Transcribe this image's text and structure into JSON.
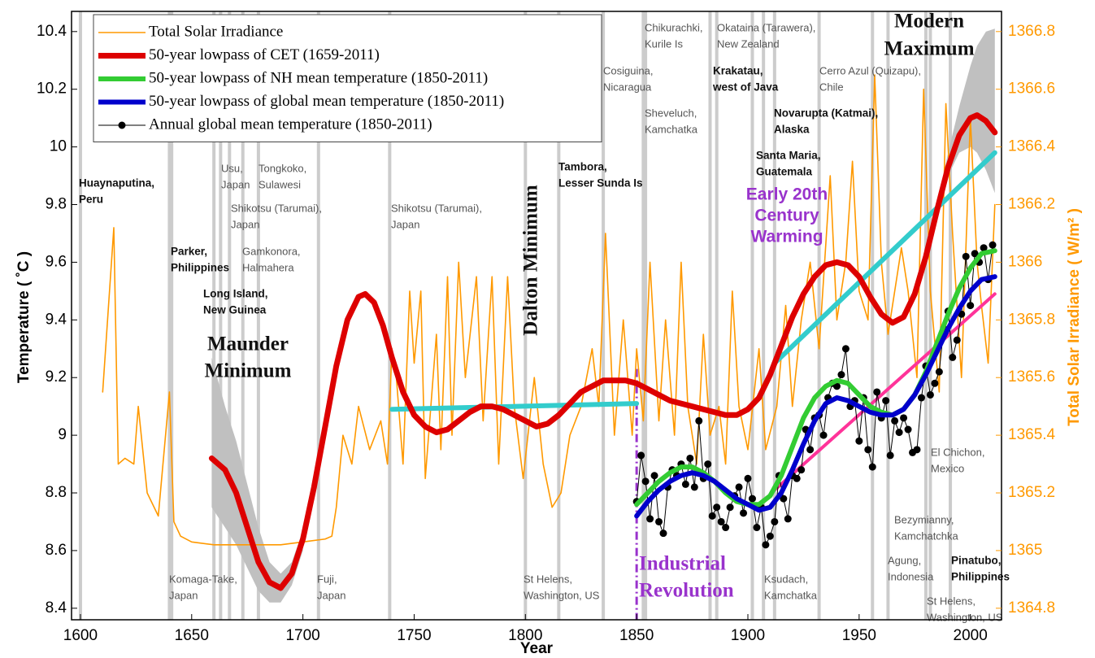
{
  "chart_data": {
    "type": "line",
    "x_label": "Year",
    "y_label": "Temperature ( ˚C )",
    "y2_label": "Total Solar Irradiance ( W/m² )",
    "xlim": [
      1596,
      2014
    ],
    "ylim": [
      8.36,
      10.47
    ],
    "y2lim": [
      1364.76,
      1366.87
    ],
    "xticks": [
      1600,
      1650,
      1700,
      1750,
      1800,
      1850,
      1900,
      1950,
      2000
    ],
    "yticks": [
      8.4,
      8.6,
      8.8,
      9,
      9.2,
      9.4,
      9.6,
      9.8,
      10,
      10.2,
      10.4
    ],
    "y2ticks": [
      1364.8,
      1365,
      1365.2,
      1365.4,
      1365.6,
      1365.8,
      1366,
      1366.2,
      1366.4,
      1366.6,
      1366.8
    ],
    "y2_color": "#ff9900",
    "grid": false,
    "legend": "upper left",
    "series": [
      {
        "name": "Total Solar Irradiance",
        "color": "#ff9900",
        "axis": "y2",
        "x": [
          1610,
          1615,
          1617,
          1620,
          1624,
          1626,
          1630,
          1635,
          1640,
          1642,
          1645,
          1650,
          1660,
          1670,
          1680,
          1690,
          1700,
          1710,
          1713,
          1715,
          1718,
          1722,
          1725,
          1730,
          1735,
          1738,
          1740,
          1742,
          1745,
          1748,
          1750,
          1753,
          1755,
          1760,
          1762,
          1765,
          1767,
          1770,
          1773,
          1778,
          1781,
          1785,
          1788,
          1792,
          1795,
          1799,
          1804,
          1808,
          1812,
          1816,
          1820,
          1825,
          1830,
          1833,
          1836,
          1840,
          1844,
          1848,
          1850,
          1853,
          1856,
          1860,
          1863,
          1867,
          1870,
          1873,
          1877,
          1880,
          1883,
          1887,
          1890,
          1893,
          1896,
          1900,
          1905,
          1908,
          1913,
          1917,
          1920,
          1924,
          1928,
          1932,
          1937,
          1940,
          1944,
          1947,
          1950,
          1954,
          1957,
          1960,
          1963,
          1966,
          1969,
          1972,
          1976,
          1979,
          1982,
          1986,
          1989,
          1992,
          1996,
          2000,
          2003,
          2005,
          2008,
          2011
        ],
        "values": [
          1365.55,
          1366.12,
          1365.3,
          1365.32,
          1365.3,
          1365.5,
          1365.2,
          1365.12,
          1365.55,
          1365.1,
          1365.05,
          1365.03,
          1365.02,
          1365.02,
          1365.02,
          1365.02,
          1365.03,
          1365.04,
          1365.05,
          1365.15,
          1365.4,
          1365.3,
          1365.5,
          1365.35,
          1365.45,
          1365.3,
          1365.7,
          1365.6,
          1365.3,
          1365.9,
          1365.65,
          1365.9,
          1365.25,
          1365.75,
          1365.35,
          1365.95,
          1365.4,
          1366.0,
          1365.6,
          1365.95,
          1365.45,
          1365.95,
          1365.3,
          1365.95,
          1365.5,
          1365.25,
          1365.6,
          1365.3,
          1365.15,
          1365.2,
          1365.4,
          1365.5,
          1365.7,
          1365.5,
          1366.1,
          1365.4,
          1365.8,
          1365.4,
          1365.7,
          1365.45,
          1366.0,
          1365.45,
          1365.8,
          1365.4,
          1366.0,
          1365.5,
          1365.3,
          1365.75,
          1365.4,
          1365.5,
          1365.3,
          1365.9,
          1365.5,
          1365.35,
          1365.7,
          1365.35,
          1365.5,
          1365.85,
          1365.5,
          1365.8,
          1366.0,
          1365.7,
          1366.3,
          1365.8,
          1366.0,
          1366.35,
          1365.9,
          1365.8,
          1366.65,
          1366.0,
          1365.75,
          1365.9,
          1366.05,
          1365.9,
          1365.6,
          1366.6,
          1365.9,
          1365.55,
          1366.55,
          1366.1,
          1365.6,
          1366.5,
          1366.0,
          1365.85,
          1365.65,
          1366.2
        ]
      },
      {
        "name": "50-year lowpass of CET (1659-2011)",
        "color": "#dd0000",
        "x": [
          1659,
          1665,
          1670,
          1675,
          1680,
          1685,
          1690,
          1695,
          1700,
          1705,
          1710,
          1715,
          1720,
          1725,
          1728,
          1732,
          1736,
          1740,
          1745,
          1750,
          1755,
          1760,
          1765,
          1770,
          1775,
          1780,
          1785,
          1790,
          1795,
          1800,
          1805,
          1810,
          1815,
          1820,
          1825,
          1830,
          1835,
          1840,
          1845,
          1850,
          1855,
          1860,
          1865,
          1870,
          1875,
          1880,
          1885,
          1890,
          1895,
          1900,
          1905,
          1910,
          1915,
          1920,
          1925,
          1930,
          1935,
          1940,
          1945,
          1950,
          1955,
          1960,
          1965,
          1970,
          1975,
          1980,
          1985,
          1990,
          1995,
          2000,
          2003,
          2007,
          2011
        ],
        "values": [
          8.92,
          8.88,
          8.8,
          8.68,
          8.56,
          8.49,
          8.47,
          8.52,
          8.64,
          8.82,
          9.03,
          9.24,
          9.4,
          9.48,
          9.49,
          9.46,
          9.38,
          9.27,
          9.15,
          9.07,
          9.03,
          9.01,
          9.02,
          9.05,
          9.08,
          9.1,
          9.1,
          9.09,
          9.07,
          9.05,
          9.03,
          9.04,
          9.07,
          9.11,
          9.15,
          9.17,
          9.19,
          9.19,
          9.19,
          9.18,
          9.16,
          9.14,
          9.12,
          9.11,
          9.1,
          9.09,
          9.08,
          9.07,
          9.07,
          9.09,
          9.13,
          9.21,
          9.31,
          9.41,
          9.49,
          9.55,
          9.59,
          9.6,
          9.59,
          9.55,
          9.48,
          9.42,
          9.39,
          9.41,
          9.49,
          9.62,
          9.78,
          9.93,
          10.04,
          10.1,
          10.11,
          10.09,
          10.05
        ]
      },
      {
        "name": "50-year lowpass of NH mean temperature (1850-2011)",
        "color": "#33cc33",
        "x": [
          1850,
          1855,
          1860,
          1865,
          1870,
          1875,
          1880,
          1885,
          1890,
          1895,
          1900,
          1905,
          1910,
          1915,
          1920,
          1925,
          1930,
          1935,
          1940,
          1945,
          1950,
          1955,
          1960,
          1965,
          1970,
          1975,
          1980,
          1985,
          1990,
          1995,
          2000,
          2005,
          2011
        ],
        "values": [
          8.76,
          8.8,
          8.84,
          8.87,
          8.89,
          8.89,
          8.87,
          8.84,
          8.8,
          8.77,
          8.76,
          8.76,
          8.79,
          8.86,
          8.96,
          9.06,
          9.13,
          9.17,
          9.19,
          9.18,
          9.14,
          9.1,
          9.08,
          9.07,
          9.09,
          9.14,
          9.22,
          9.32,
          9.42,
          9.51,
          9.58,
          9.63,
          9.64
        ]
      },
      {
        "name": "50-year lowpass of global mean temperature (1850-2011)",
        "color": "#0000cc",
        "x": [
          1850,
          1855,
          1860,
          1865,
          1870,
          1875,
          1880,
          1885,
          1890,
          1895,
          1900,
          1905,
          1910,
          1915,
          1920,
          1925,
          1930,
          1935,
          1940,
          1945,
          1950,
          1955,
          1960,
          1965,
          1970,
          1975,
          1980,
          1985,
          1990,
          1995,
          2000,
          2005,
          2011
        ],
        "values": [
          8.72,
          8.77,
          8.81,
          8.84,
          8.86,
          8.87,
          8.86,
          8.84,
          8.81,
          8.78,
          8.76,
          8.74,
          8.75,
          8.8,
          8.88,
          8.97,
          9.05,
          9.11,
          9.13,
          9.12,
          9.1,
          9.08,
          9.07,
          9.07,
          9.09,
          9.14,
          9.21,
          9.29,
          9.37,
          9.44,
          9.5,
          9.54,
          9.55
        ]
      },
      {
        "name": "Annual global mean temperature (1850-2011)",
        "color": "#000000",
        "markers": true,
        "x": [
          1850,
          1852,
          1854,
          1856,
          1858,
          1860,
          1862,
          1864,
          1866,
          1868,
          1870,
          1872,
          1874,
          1876,
          1878,
          1880,
          1882,
          1884,
          1886,
          1888,
          1890,
          1892,
          1894,
          1896,
          1898,
          1900,
          1902,
          1904,
          1906,
          1908,
          1910,
          1912,
          1914,
          1916,
          1918,
          1920,
          1922,
          1924,
          1926,
          1928,
          1930,
          1932,
          1934,
          1936,
          1938,
          1940,
          1942,
          1944,
          1946,
          1948,
          1950,
          1952,
          1954,
          1956,
          1958,
          1960,
          1962,
          1964,
          1966,
          1968,
          1970,
          1972,
          1974,
          1976,
          1978,
          1980,
          1982,
          1984,
          1986,
          1988,
          1990,
          1992,
          1994,
          1996,
          1998,
          2000,
          2002,
          2004,
          2006,
          2008,
          2010
        ],
        "values": [
          8.77,
          8.93,
          8.84,
          8.71,
          8.86,
          8.7,
          8.66,
          8.82,
          8.88,
          8.86,
          8.9,
          8.83,
          8.92,
          8.82,
          9.05,
          8.85,
          8.9,
          8.72,
          8.75,
          8.7,
          8.68,
          8.75,
          8.79,
          8.82,
          8.73,
          8.85,
          8.78,
          8.68,
          8.75,
          8.62,
          8.65,
          8.7,
          8.86,
          8.78,
          8.71,
          8.86,
          8.85,
          8.88,
          9.02,
          8.95,
          9.06,
          9.07,
          9.0,
          9.13,
          9.18,
          9.17,
          9.21,
          9.3,
          9.1,
          9.12,
          8.98,
          9.13,
          8.95,
          8.89,
          9.15,
          9.06,
          9.12,
          8.93,
          9.05,
          9.01,
          9.06,
          9.02,
          8.94,
          8.95,
          9.13,
          9.24,
          9.14,
          9.18,
          9.22,
          9.37,
          9.43,
          9.27,
          9.33,
          9.42,
          9.62,
          9.45,
          9.63,
          9.6,
          9.65,
          9.54,
          9.66
        ]
      },
      {
        "color": "#33cccc",
        "x": [
          1740,
          1850
        ],
        "values": [
          9.09,
          9.11
        ]
      },
      {
        "color": "#33cccc",
        "x": [
          1912,
          2011
        ],
        "values": [
          9.25,
          9.98
        ]
      },
      {
        "color": "#ff3399",
        "x": [
          1912,
          2011
        ],
        "values": [
          8.81,
          9.49
        ]
      }
    ],
    "bands": [
      {
        "color": "#c0c0c0",
        "x": [
          1659,
          1665,
          1670,
          1675,
          1680,
          1685,
          1690,
          1695,
          1700
        ],
        "lower": [
          8.75,
          8.68,
          8.62,
          8.54,
          8.46,
          8.42,
          8.42,
          8.48,
          8.6
        ],
        "upper": [
          9.27,
          9.1,
          8.98,
          8.83,
          8.68,
          8.56,
          8.52,
          8.56,
          8.67
        ]
      },
      {
        "color": "#c0c0c0",
        "x": [
          1985,
          1990,
          1995,
          2000,
          2003,
          2007,
          2011
        ],
        "lower": [
          9.76,
          9.9,
          9.98,
          10.0,
          9.98,
          9.92,
          9.84
        ],
        "upper": [
          9.8,
          9.98,
          10.14,
          10.28,
          10.35,
          10.4,
          10.41
        ]
      }
    ],
    "industrial_revolution": {
      "year": 1850,
      "top": 9.23,
      "color": "#9933cc"
    },
    "volcano_color": "#cccccc",
    "volcanoes": [
      {
        "year": 1600,
        "label": [
          "Huaynaputina,",
          "Peru"
        ],
        "bold": true
      },
      {
        "year": 1640,
        "label": [
          "Komaga-Take,",
          "Japan"
        ]
      },
      {
        "year": 1641,
        "label": [
          "Parker,",
          "Philippines"
        ],
        "bold": true
      },
      {
        "year": 1660,
        "label": [
          "Long Island,",
          "New Guinea"
        ],
        "bold": true
      },
      {
        "year": 1663,
        "label": [
          "Usu,",
          "Japan"
        ]
      },
      {
        "year": 1667,
        "label": [
          "Shikotsu (Tarumai),",
          "Japan"
        ]
      },
      {
        "year": 1673,
        "label": [
          "Gamkonora,",
          "Halmahera"
        ]
      },
      {
        "year": 1680,
        "label": [
          "Tongkoko,",
          "Sulawesi"
        ]
      },
      {
        "year": 1707,
        "label": [
          "Fuji,",
          "Japan"
        ]
      },
      {
        "year": 1739,
        "label": [
          "Shikotsu (Tarumai),",
          "Japan"
        ]
      },
      {
        "year": 1800,
        "label": [
          "St Helens,",
          "Washington, US"
        ]
      },
      {
        "year": 1815,
        "label": [
          "Tambora,",
          "Lesser Sunda Is"
        ],
        "bold": true
      },
      {
        "year": 1835,
        "label": [
          "Cosiguina,",
          "Nicaragua"
        ]
      },
      {
        "year": 1853,
        "label": [
          "Chikurachki,",
          "Kurile Is"
        ]
      },
      {
        "year": 1854,
        "label": [
          "Sheveluch,",
          "Kamchatka"
        ]
      },
      {
        "year": 1883,
        "label": [
          "Krakatau,",
          "west of Java"
        ],
        "bold": true
      },
      {
        "year": 1886,
        "label": [
          "Okataina (Tarawera),",
          "New Zealand"
        ]
      },
      {
        "year": 1902,
        "label": [
          "Santa Maria,",
          "Guatemala"
        ],
        "bold": true
      },
      {
        "year": 1907,
        "label": [
          "Ksudach,",
          "Kamchatka"
        ]
      },
      {
        "year": 1912,
        "label": [
          "Novarupta (Katmai),",
          "Alaska"
        ],
        "bold": true
      },
      {
        "year": 1932,
        "label": [
          "Cerro Azul (Quizapu),",
          "Chile"
        ]
      },
      {
        "year": 1956,
        "label": [
          "Bezymianny,",
          "Kamchatchka"
        ]
      },
      {
        "year": 1963,
        "label": [
          "Agung,",
          "Indonesia"
        ]
      },
      {
        "year": 1980,
        "label": [
          "St Helens,",
          "Washington, US"
        ]
      },
      {
        "year": 1982,
        "label": [
          "El Chichon,",
          "Mexico"
        ]
      },
      {
        "year": 1991,
        "label": [
          "Pinatubo,",
          "Philippines"
        ],
        "bold": true
      }
    ],
    "annotations": [
      {
        "lines": [
          "Maunder",
          "Minimum"
        ],
        "color": "#111111"
      },
      {
        "lines": [
          "Dalton Minimum"
        ],
        "color": "#111111"
      },
      {
        "lines": [
          "Industrial",
          "Revolution"
        ],
        "color": "#9933cc"
      },
      {
        "lines": [
          "Early 20th",
          "Century",
          "Warming"
        ],
        "color": "#9933cc"
      },
      {
        "lines": [
          "Modern",
          "Maximum"
        ],
        "color": "#111111"
      }
    ]
  }
}
